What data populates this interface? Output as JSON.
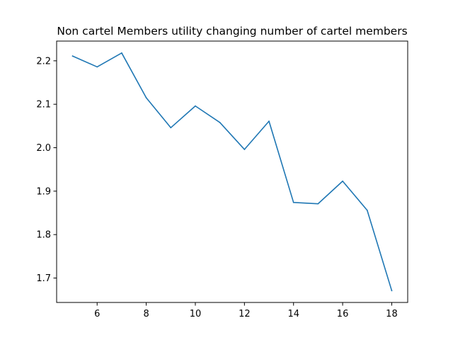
{
  "chart_data": {
    "type": "line",
    "title": "Non cartel Members utility changing number of cartel members",
    "xlabel": "",
    "ylabel": "",
    "x": [
      5,
      6,
      7,
      8,
      9,
      10,
      11,
      12,
      13,
      14,
      15,
      16,
      17,
      18
    ],
    "series": [
      {
        "values": [
          2.211,
          2.186,
          2.218,
          2.115,
          2.046,
          2.096,
          2.058,
          1.996,
          2.061,
          1.874,
          1.871,
          1.923,
          1.856,
          1.671
        ],
        "color": "#1f77b4"
      }
    ],
    "xlim": [
      4.35,
      18.65
    ],
    "ylim": [
      1.6438,
      2.2454
    ],
    "xticks": [
      "6",
      "8",
      "10",
      "12",
      "14",
      "16",
      "18"
    ],
    "yticks": [
      "1.7",
      "1.8",
      "1.9",
      "2.0",
      "2.1",
      "2.2"
    ],
    "grid": false,
    "legend": "none"
  }
}
